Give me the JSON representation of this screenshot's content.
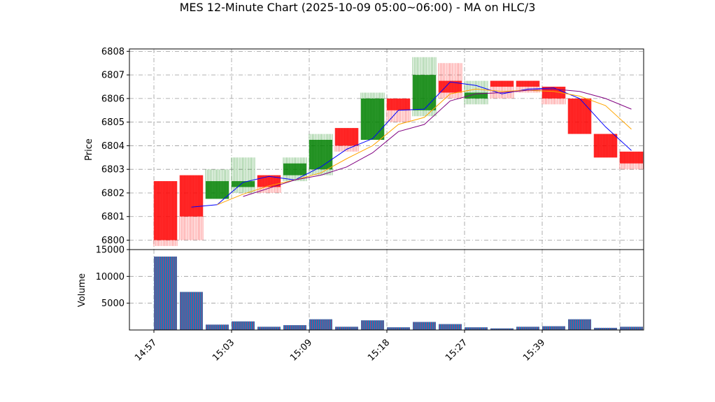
{
  "chart_data": {
    "type": "candlestick",
    "title": "MES 12-Minute Chart (2025-10-09 05:00~06:00) - MA on HLC/3",
    "price_panel": {
      "ylabel": "Price",
      "ylim": [
        6799.6,
        6808.1
      ],
      "yticks": [
        6800,
        6801,
        6802,
        6803,
        6804,
        6805,
        6806,
        6807,
        6808
      ],
      "grid": true
    },
    "volume_panel": {
      "ylabel": "Volume",
      "ylim": [
        0,
        15000
      ],
      "yticks": [
        5000,
        10000,
        15000
      ],
      "grid": true
    },
    "x_ticks": [
      {
        "index": 0,
        "label": "14:57"
      },
      {
        "index": 3,
        "label": "15:03"
      },
      {
        "index": 6,
        "label": "15:09"
      },
      {
        "index": 9,
        "label": "15:18"
      },
      {
        "index": 12,
        "label": "15:27"
      },
      {
        "index": 15,
        "label": "15:39"
      }
    ],
    "candles": [
      {
        "open": 6802.5,
        "high": 6802.5,
        "low": 6799.75,
        "close": 6800.0,
        "volume": 13700
      },
      {
        "open": 6802.75,
        "high": 6802.75,
        "low": 6800.0,
        "close": 6801.0,
        "volume": 7100
      },
      {
        "open": 6801.75,
        "high": 6803.0,
        "low": 6801.75,
        "close": 6802.5,
        "volume": 1000
      },
      {
        "open": 6802.25,
        "high": 6803.5,
        "low": 6802.0,
        "close": 6802.5,
        "volume": 1600
      },
      {
        "open": 6802.75,
        "high": 6802.75,
        "low": 6802.0,
        "close": 6802.25,
        "volume": 600
      },
      {
        "open": 6802.75,
        "high": 6803.5,
        "low": 6802.5,
        "close": 6803.25,
        "volume": 900
      },
      {
        "open": 6803.0,
        "high": 6804.5,
        "low": 6802.75,
        "close": 6804.25,
        "volume": 2000
      },
      {
        "open": 6804.75,
        "high": 6804.75,
        "low": 6803.75,
        "close": 6804.0,
        "volume": 600
      },
      {
        "open": 6804.25,
        "high": 6806.25,
        "low": 6804.25,
        "close": 6806.0,
        "volume": 1800
      },
      {
        "open": 6806.0,
        "high": 6806.0,
        "low": 6805.0,
        "close": 6805.5,
        "volume": 500
      },
      {
        "open": 6805.5,
        "high": 6807.75,
        "low": 6805.25,
        "close": 6807.0,
        "volume": 1500
      },
      {
        "open": 6806.75,
        "high": 6807.5,
        "low": 6806.0,
        "close": 6806.25,
        "volume": 1100
      },
      {
        "open": 6806.0,
        "high": 6806.75,
        "low": 6805.75,
        "close": 6806.25,
        "volume": 500
      },
      {
        "open": 6806.75,
        "high": 6806.75,
        "low": 6806.0,
        "close": 6806.5,
        "volume": 300
      },
      {
        "open": 6806.75,
        "high": 6806.75,
        "low": 6806.25,
        "close": 6806.5,
        "volume": 600
      },
      {
        "open": 6806.5,
        "high": 6806.5,
        "low": 6805.75,
        "close": 6806.0,
        "volume": 700
      },
      {
        "open": 6806.0,
        "high": 6806.0,
        "low": 6804.5,
        "close": 6804.5,
        "volume": 2000
      },
      {
        "open": 6804.5,
        "high": 6804.5,
        "low": 6803.5,
        "close": 6803.5,
        "volume": 400
      },
      {
        "open": 6803.75,
        "high": 6803.75,
        "low": 6803.0,
        "close": 6803.25,
        "volume": 600
      }
    ],
    "ma_lines": [
      {
        "color": "#0000ff",
        "values": [
          null,
          6801.4,
          6801.5,
          6802.45,
          6802.7,
          6802.55,
          6803.1,
          6803.85,
          6804.3,
          6805.5,
          6805.55,
          6806.7,
          6806.55,
          6806.2,
          6806.4,
          6806.45,
          6806.0,
          6804.8,
          6803.8
        ]
      },
      {
        "color": "#ffa500",
        "values": [
          null,
          null,
          6801.5,
          6801.95,
          6802.3,
          6802.55,
          6802.85,
          6803.45,
          6804.0,
          6804.9,
          6805.2,
          6806.2,
          6806.4,
          6806.3,
          6806.35,
          6806.3,
          6806.1,
          6805.7,
          6804.7
        ]
      },
      {
        "color": "#800080",
        "values": [
          null,
          null,
          null,
          6801.85,
          6802.2,
          6802.55,
          6802.75,
          6803.1,
          6803.7,
          6804.6,
          6804.9,
          6805.9,
          6806.2,
          6806.25,
          6806.35,
          6806.4,
          6806.3,
          6806.0,
          6805.55
        ]
      }
    ],
    "colors": {
      "up": "#008000",
      "down": "#ff0000",
      "volume": "#1f77b4"
    }
  }
}
